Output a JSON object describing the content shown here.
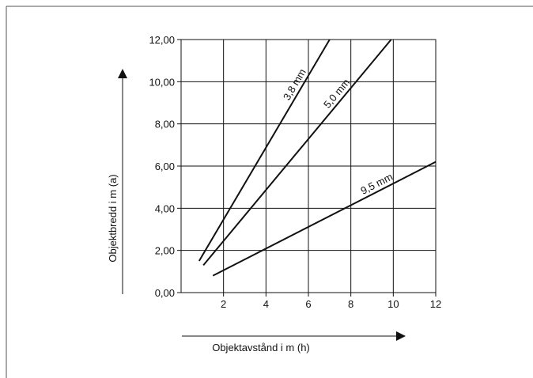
{
  "chart_data": {
    "type": "line",
    "title": "",
    "xlabel": "Objektavstånd i m (h)",
    "ylabel": "Objektbredd i m (a)",
    "xlim": [
      0,
      12
    ],
    "ylim": [
      0,
      12
    ],
    "grid": true,
    "x_ticks": [
      2,
      4,
      6,
      8,
      10,
      12
    ],
    "x_tick_labels": [
      "2",
      "4",
      "6",
      "8",
      "10",
      "12"
    ],
    "y_ticks": [
      0,
      2,
      4,
      6,
      8,
      10,
      12
    ],
    "y_tick_labels": [
      "0,00",
      "2,00",
      "4,00",
      "6,00",
      "8,00",
      "10,00",
      "12,00"
    ],
    "series": [
      {
        "name": "3,8 mm",
        "x": [
          0.85,
          7.0
        ],
        "y": [
          1.5,
          12.0
        ]
      },
      {
        "name": "5,0 mm",
        "x": [
          1.05,
          9.9
        ],
        "y": [
          1.3,
          12.0
        ]
      },
      {
        "name": "9,5 mm",
        "x": [
          1.5,
          12.0
        ],
        "y": [
          0.8,
          6.2
        ]
      }
    ],
    "line_color": "#111111"
  }
}
